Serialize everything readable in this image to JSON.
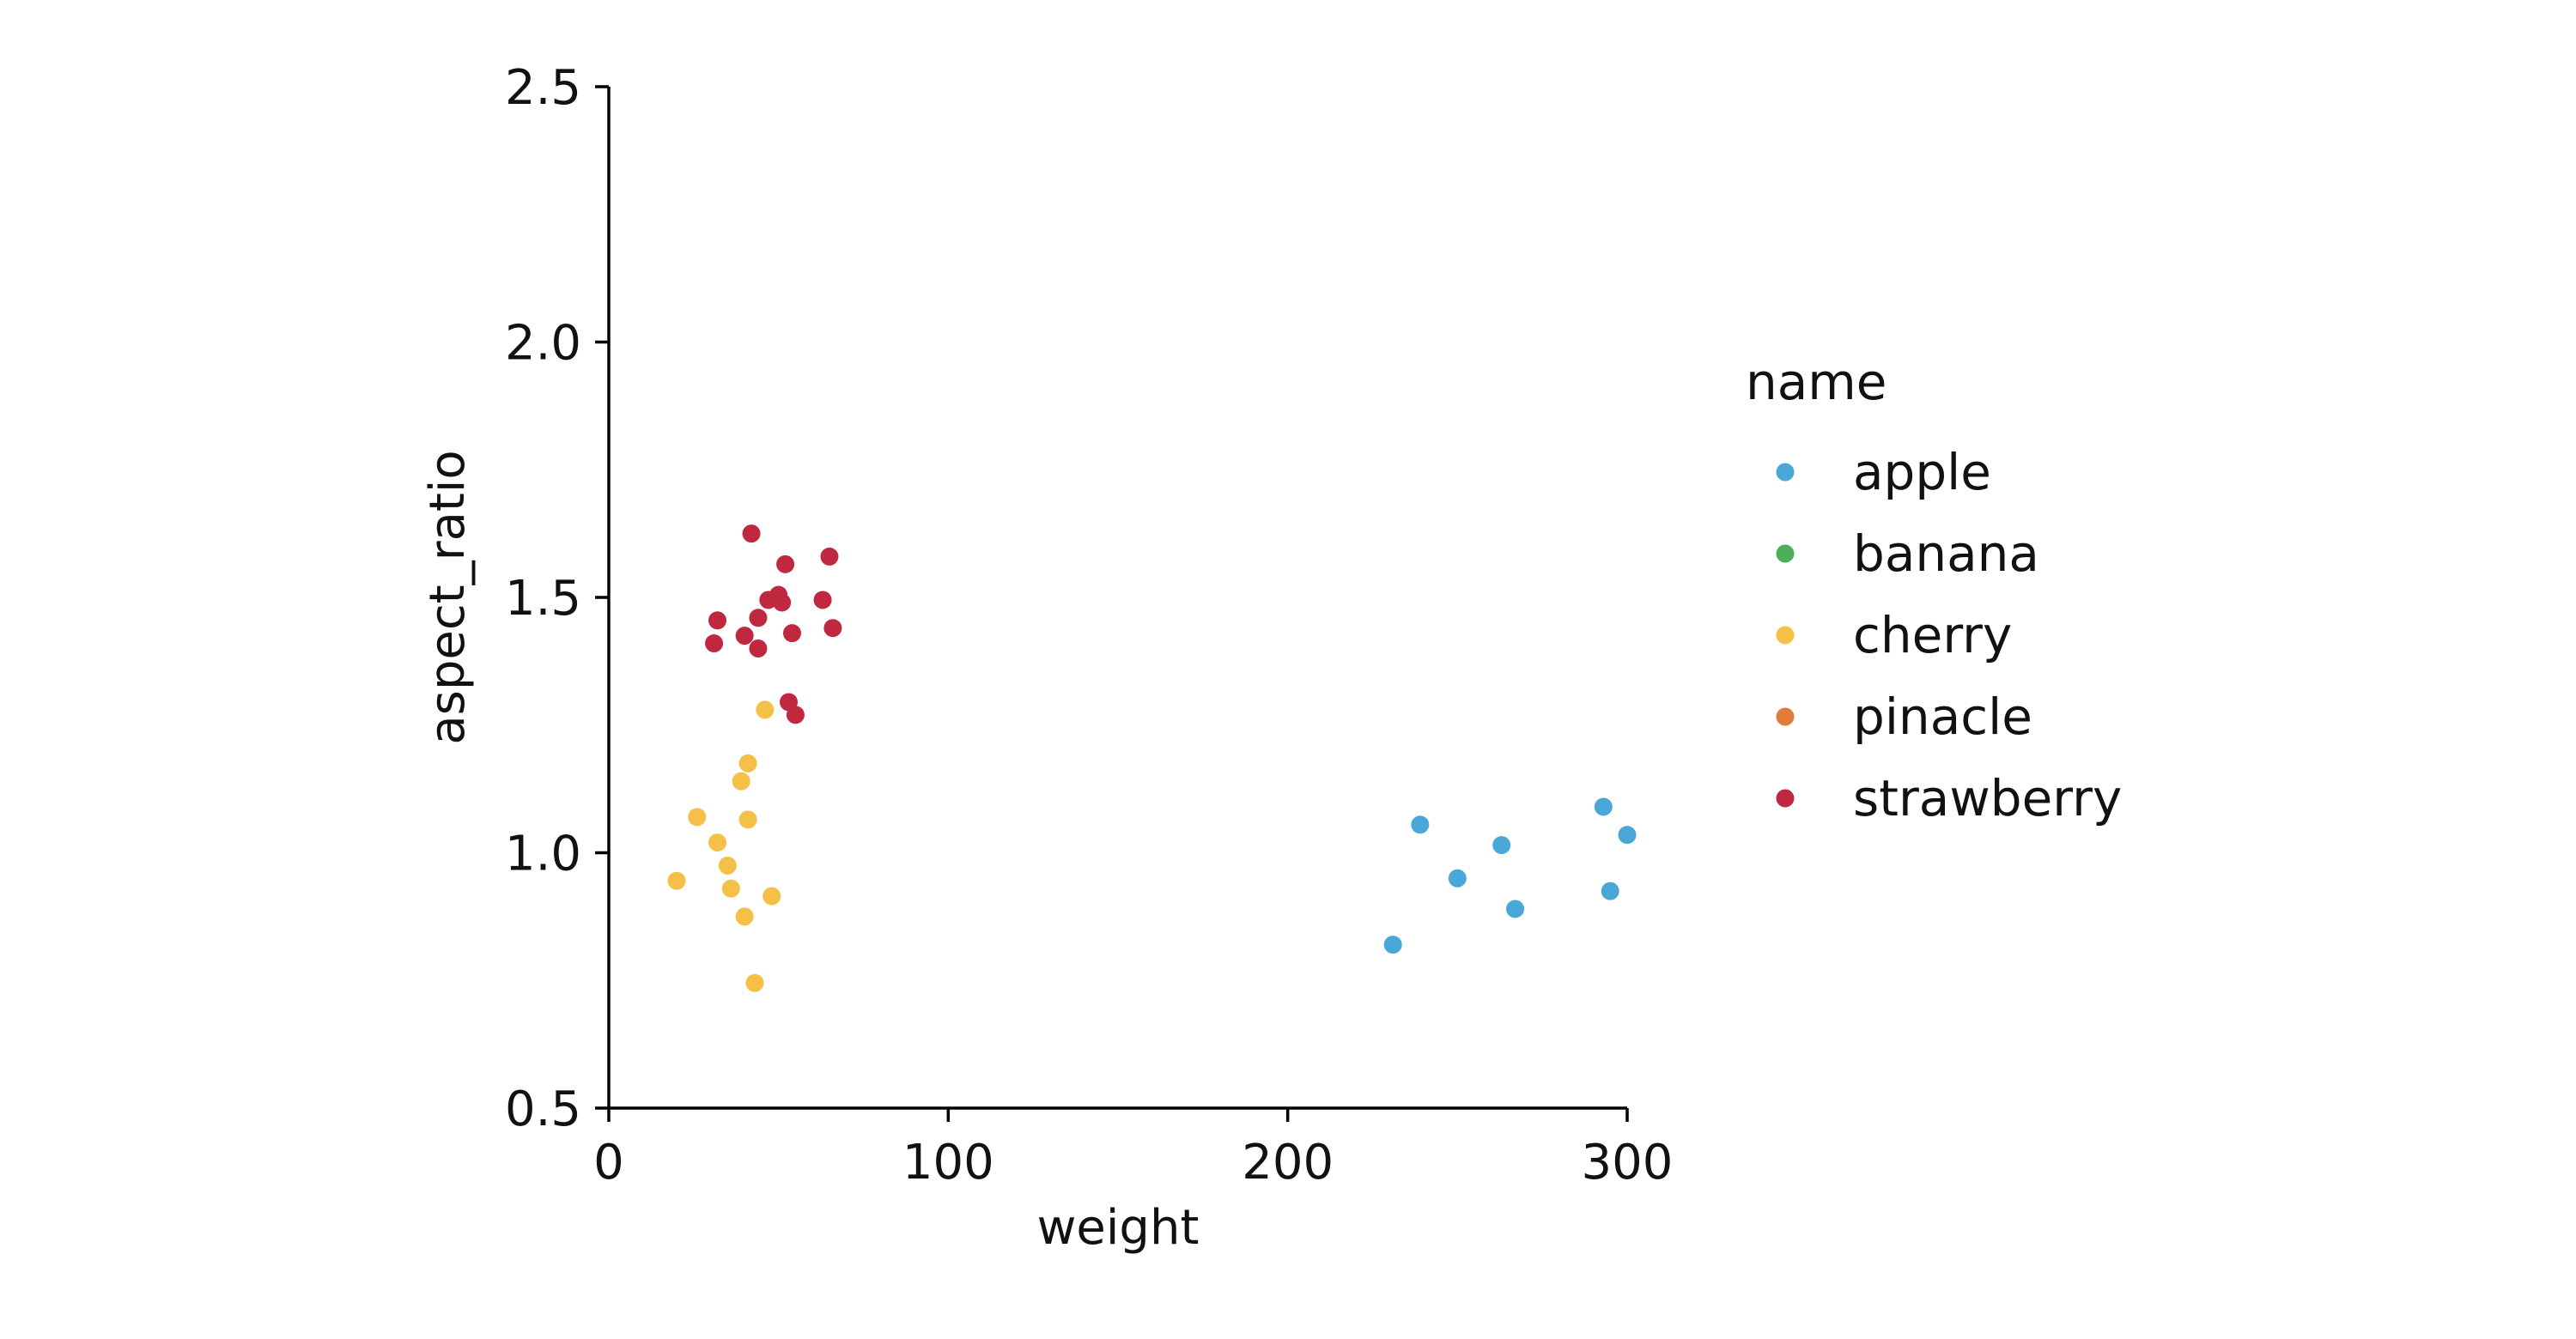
{
  "chart_data": {
    "type": "scatter",
    "xlabel": "weight",
    "ylabel": "aspect_ratio",
    "xlim": [
      0,
      300
    ],
    "ylim": [
      0.5,
      2.5
    ],
    "xticks": [
      "0",
      "100",
      "200",
      "300"
    ],
    "yticks": [
      "0.5",
      "1.0",
      "1.5",
      "2.0",
      "2.5"
    ],
    "grid": false,
    "legend": {
      "title": "name",
      "placement": "right",
      "entries": [
        "apple",
        "banana",
        "cherry",
        "pinacle",
        "strawberry"
      ]
    },
    "colors": {
      "apple": "#4aa8d8",
      "banana": "#4caf58",
      "cherry": "#f5c048",
      "pinacle": "#e07b39",
      "strawberry": "#c0283f"
    },
    "series": [
      {
        "name": "apple",
        "x": [
          231,
          239,
          250,
          263,
          267,
          293,
          295,
          300
        ],
        "y": [
          0.82,
          1.055,
          0.95,
          1.015,
          0.89,
          1.09,
          0.925,
          1.035
        ]
      },
      {
        "name": "banana",
        "x": [],
        "y": []
      },
      {
        "name": "cherry",
        "x": [
          20,
          26,
          32,
          35,
          36,
          39,
          40,
          41,
          41,
          43,
          46,
          48
        ],
        "y": [
          0.945,
          1.07,
          1.02,
          0.975,
          0.93,
          1.14,
          0.875,
          1.065,
          1.175,
          0.745,
          1.28,
          0.915
        ]
      },
      {
        "name": "pinacle",
        "x": [],
        "y": []
      },
      {
        "name": "strawberry",
        "x": [
          31,
          32,
          40,
          42,
          44,
          44,
          47,
          50,
          51,
          52,
          53,
          54,
          55,
          63,
          65,
          66
        ],
        "y": [
          1.41,
          1.455,
          1.425,
          1.625,
          1.4,
          1.46,
          1.495,
          1.505,
          1.49,
          1.565,
          1.295,
          1.43,
          1.27,
          1.495,
          1.58,
          1.44
        ]
      }
    ]
  }
}
